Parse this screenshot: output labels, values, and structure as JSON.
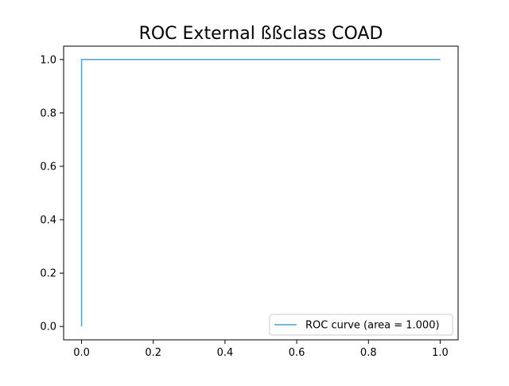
{
  "chart_data": {
    "type": "line",
    "title": "ROC External ßßclass COAD",
    "xlabel": "",
    "ylabel": "",
    "xlim": [
      -0.05,
      1.05
    ],
    "ylim": [
      -0.05,
      1.05
    ],
    "xticks": [
      0.0,
      0.2,
      0.4,
      0.6,
      0.8,
      1.0
    ],
    "xtick_labels": [
      "0.0",
      "0.2",
      "0.4",
      "0.6",
      "0.8",
      "1.0"
    ],
    "yticks": [
      0.0,
      0.2,
      0.4,
      0.6,
      0.8,
      1.0
    ],
    "ytick_labels": [
      "0.0",
      "0.2",
      "0.4",
      "0.6",
      "0.8",
      "1.0"
    ],
    "grid": false,
    "legend_position": "lower right",
    "series": [
      {
        "name": "ROC curve (area = 1.000)",
        "color": "#4ba3cf",
        "x": [
          0.0,
          0.0,
          1.0
        ],
        "y": [
          0.0,
          1.0,
          1.0
        ]
      }
    ]
  }
}
